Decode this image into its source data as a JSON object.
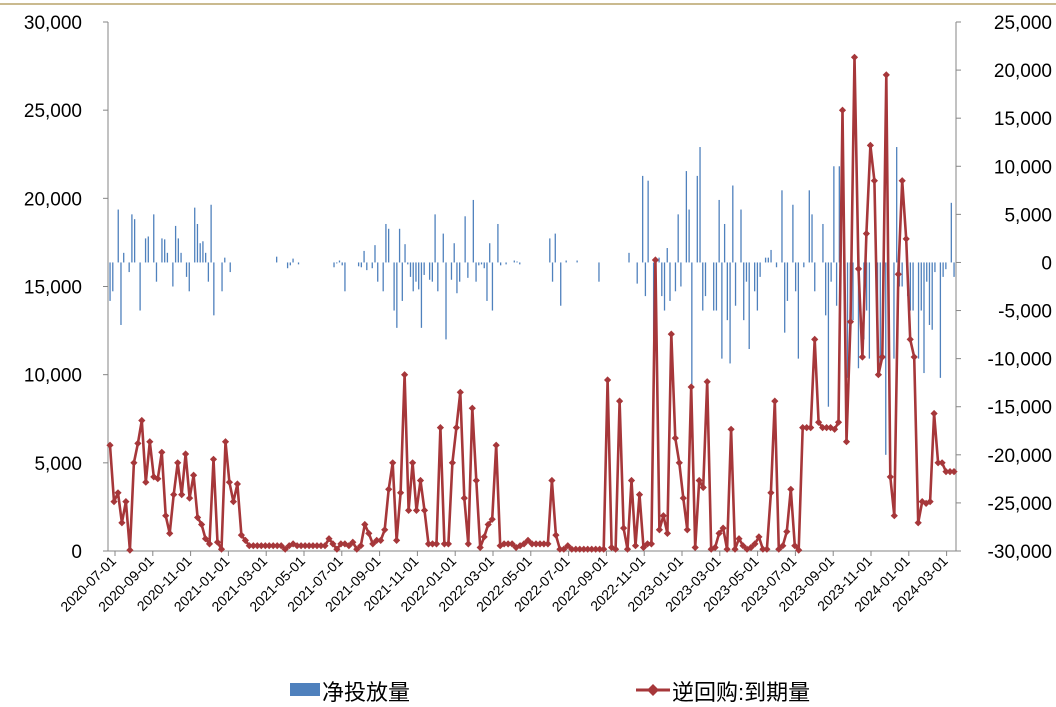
{
  "chart_data": {
    "type": "bar+line",
    "title": "",
    "x_tick_labels": [
      "2020-07-01",
      "2020-09-01",
      "2020-11-01",
      "2021-01-01",
      "2021-03-01",
      "2021-05-01",
      "2021-07-01",
      "2021-09-01",
      "2021-11-01",
      "2022-01-01",
      "2022-03-01",
      "2022-05-01",
      "2022-07-01",
      "2022-09-01",
      "2022-11-01",
      "2023-01-01",
      "2023-03-01",
      "2023-05-01",
      "2023-07-01",
      "2023-09-01",
      "2023-11-01",
      "2024-01-01",
      "2024-03-01"
    ],
    "left_axis": {
      "ylim": [
        0,
        30000
      ],
      "ticks": [
        "0",
        "5,000",
        "10,000",
        "15,000",
        "20,000",
        "25,000",
        "30,000"
      ]
    },
    "right_axis": {
      "ylim": [
        -30000,
        25000
      ],
      "ticks": [
        "-30,000",
        "-25,000",
        "-20,000",
        "-15,000",
        "-10,000",
        "-5,000",
        "0",
        "5,000",
        "10,000",
        "15,000",
        "20,000",
        "25,000"
      ]
    },
    "legend_position": "bottom",
    "series": [
      {
        "name": "净投放量",
        "type": "bar",
        "axis": "right",
        "color": "#4f81bd",
        "values": [
          -4000,
          -3000,
          0,
          5500,
          -6500,
          1000,
          0,
          -1000,
          5000,
          4500,
          0,
          -5000,
          0,
          2500,
          2700,
          0,
          5000,
          -2000,
          0,
          2500,
          2400,
          1000,
          0,
          -2500,
          3800,
          2500,
          1000,
          0,
          -1500,
          -3000,
          0,
          5700,
          4000,
          2000,
          2200,
          1000,
          -2000,
          6000,
          -5500,
          0,
          0,
          -3000,
          500,
          0,
          -1000,
          0,
          0,
          0,
          0,
          0,
          0,
          0,
          0,
          0,
          0,
          0,
          0,
          0,
          0,
          0,
          0,
          600,
          0,
          0,
          0,
          -600,
          -300,
          400,
          0,
          -200,
          0,
          0,
          0,
          0,
          0,
          0,
          0,
          0,
          0,
          0,
          0,
          0,
          -500,
          -100,
          200,
          -300,
          -3000,
          0,
          0,
          0,
          0,
          -400,
          -500,
          1200,
          -800,
          0,
          -600,
          1800,
          -2000,
          0,
          -3000,
          4000,
          3500,
          0,
          -5000,
          -6800,
          3500,
          -4000,
          1900,
          -200,
          -1500,
          -3000,
          -2000,
          -2800,
          -6800,
          -1300,
          0,
          -1800,
          -2000,
          5000,
          -3000,
          0,
          3000,
          -8000,
          0,
          -1800,
          2000,
          -3200,
          -2000,
          0,
          4800,
          -1600,
          0,
          6500,
          -2000,
          -300,
          -200,
          -600,
          -4000,
          2000,
          -5000,
          0,
          4000,
          -300,
          0,
          -200,
          0,
          0,
          200,
          100,
          -200,
          0,
          0,
          0,
          0,
          0,
          0,
          0,
          0,
          0,
          0,
          2500,
          -2000,
          3000,
          0,
          -4500,
          0,
          200,
          0,
          0,
          0,
          200,
          0,
          0,
          0,
          0,
          0,
          0,
          0,
          -2000,
          0,
          0,
          0,
          0,
          0,
          0,
          0,
          0,
          0,
          0,
          1000,
          0,
          0,
          -2200,
          0,
          9000,
          -3500,
          8500,
          0,
          -8000,
          0,
          500,
          -3500,
          -5000,
          1500,
          -4000,
          0,
          -3000,
          5000,
          -2500,
          0,
          9500,
          5500,
          -14000,
          0,
          9000,
          12000,
          -5000,
          -3500,
          0,
          0,
          -5000,
          -5000,
          6500,
          -10000,
          4000,
          -6000,
          -10500,
          8000,
          -4500,
          0,
          5500,
          -6000,
          -2000,
          -9000,
          0,
          -3000,
          -5000,
          -1500,
          0,
          500,
          500,
          1300,
          0,
          -500,
          0,
          7500,
          -7300,
          -4000,
          0,
          6000,
          -3000,
          -10000,
          0,
          -500,
          0,
          7500,
          5000,
          -3000,
          0,
          0,
          4000,
          -5500,
          -15000,
          -2000,
          10000,
          -4500,
          10000,
          0,
          -7000,
          -12000,
          -8000,
          -6000,
          0,
          -11000,
          0,
          -8000,
          -5000,
          -10000,
          0,
          0,
          -9000,
          -11000,
          -4500,
          -20000,
          -3500,
          0,
          -10000,
          12000,
          -2500,
          -2500,
          0,
          -3500,
          -5000,
          -5000,
          0,
          -10000,
          -5000,
          -11500,
          -2000,
          -6500,
          -7000,
          -1000,
          0,
          -12000,
          -1500,
          -700,
          0,
          6200,
          -1500
        ]
      },
      {
        "name": "逆回购:到期量",
        "type": "line",
        "axis": "left",
        "color": "#a6373a",
        "marker": "diamond",
        "values": [
          6000,
          2800,
          3300,
          1600,
          2800,
          50,
          5000,
          6100,
          7400,
          3900,
          6200,
          4200,
          4100,
          5600,
          2000,
          1000,
          3200,
          5000,
          3200,
          5500,
          3000,
          4300,
          1900,
          1500,
          700,
          400,
          5200,
          500,
          100,
          6200,
          3900,
          2800,
          3800,
          900,
          600,
          300,
          300,
          300,
          300,
          300,
          300,
          300,
          300,
          300,
          100,
          300,
          400,
          300,
          300,
          300,
          300,
          300,
          300,
          300,
          300,
          700,
          400,
          100,
          400,
          400,
          300,
          500,
          100,
          300,
          1500,
          1000,
          400,
          600,
          600,
          1200,
          3500,
          5000,
          600,
          3300,
          10000,
          2300,
          5000,
          2300,
          4000,
          2300,
          400,
          400,
          400,
          7000,
          400,
          400,
          5000,
          7000,
          9000,
          3000,
          400,
          8100,
          4000,
          200,
          800,
          1500,
          1800,
          6000,
          300,
          400,
          400,
          400,
          200,
          300,
          400,
          600,
          400,
          400,
          400,
          400,
          400,
          4000,
          900,
          100,
          100,
          300,
          100,
          100,
          100,
          100,
          100,
          100,
          100,
          100,
          100,
          9700,
          200,
          100,
          8500,
          1300,
          100,
          4000,
          300,
          3200,
          200,
          400,
          400,
          16500,
          1200,
          2000,
          1000,
          12300,
          6400,
          5000,
          3000,
          1200,
          9300,
          200,
          4000,
          3600,
          9600,
          100,
          200,
          1000,
          1300,
          100,
          6900,
          100,
          700,
          300,
          100,
          200,
          400,
          800,
          100,
          100,
          3300,
          8500,
          100,
          300,
          1100,
          3500,
          300,
          50,
          7000,
          7000,
          7000,
          12000,
          7300,
          7000,
          7000,
          7000,
          6900,
          7300,
          25000,
          6200,
          13000,
          28000,
          16000,
          11000,
          18000,
          23000,
          21000,
          10000,
          11000,
          27000,
          4200,
          2000,
          15700,
          21000,
          17700,
          12000,
          11000,
          1600,
          2800,
          2700,
          2800,
          7800,
          5000,
          5000,
          4500,
          4500,
          4500
        ]
      }
    ]
  }
}
